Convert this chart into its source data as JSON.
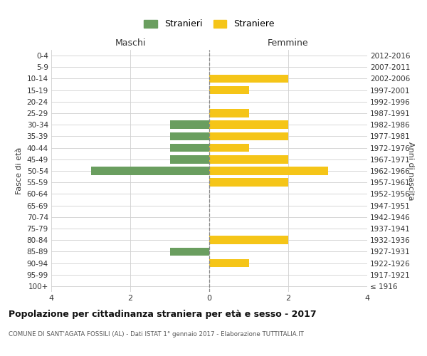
{
  "age_groups": [
    "100+",
    "95-99",
    "90-94",
    "85-89",
    "80-84",
    "75-79",
    "70-74",
    "65-69",
    "60-64",
    "55-59",
    "50-54",
    "45-49",
    "40-44",
    "35-39",
    "30-34",
    "25-29",
    "20-24",
    "15-19",
    "10-14",
    "5-9",
    "0-4"
  ],
  "birth_years": [
    "≤ 1916",
    "1917-1921",
    "1922-1926",
    "1927-1931",
    "1932-1936",
    "1937-1941",
    "1942-1946",
    "1947-1951",
    "1952-1956",
    "1957-1961",
    "1962-1966",
    "1967-1971",
    "1972-1976",
    "1977-1981",
    "1982-1986",
    "1987-1991",
    "1992-1996",
    "1997-2001",
    "2002-2006",
    "2007-2011",
    "2012-2016"
  ],
  "maschi": [
    0,
    0,
    0,
    1,
    0,
    0,
    0,
    0,
    0,
    0,
    3,
    1,
    1,
    1,
    1,
    0,
    0,
    0,
    0,
    0,
    0
  ],
  "femmine": [
    0,
    0,
    1,
    0,
    2,
    0,
    0,
    0,
    0,
    2,
    3,
    2,
    1,
    2,
    2,
    1,
    0,
    1,
    2,
    0,
    0
  ],
  "color_maschi": "#6a9e5f",
  "color_femmine": "#f5c518",
  "title": "Popolazione per cittadinanza straniera per età e sesso - 2017",
  "subtitle": "COMUNE DI SANT'AGATA FOSSILI (AL) - Dati ISTAT 1° gennaio 2017 - Elaborazione TUTTITALIA.IT",
  "xlabel_left": "Maschi",
  "xlabel_right": "Femmine",
  "ylabel_left": "Fasce di età",
  "ylabel_right": "Anni di nascita",
  "legend_maschi": "Stranieri",
  "legend_femmine": "Straniere",
  "xlim": 4,
  "bg_color": "#ffffff",
  "grid_color": "#d0d0d0",
  "text_color": "#333333"
}
